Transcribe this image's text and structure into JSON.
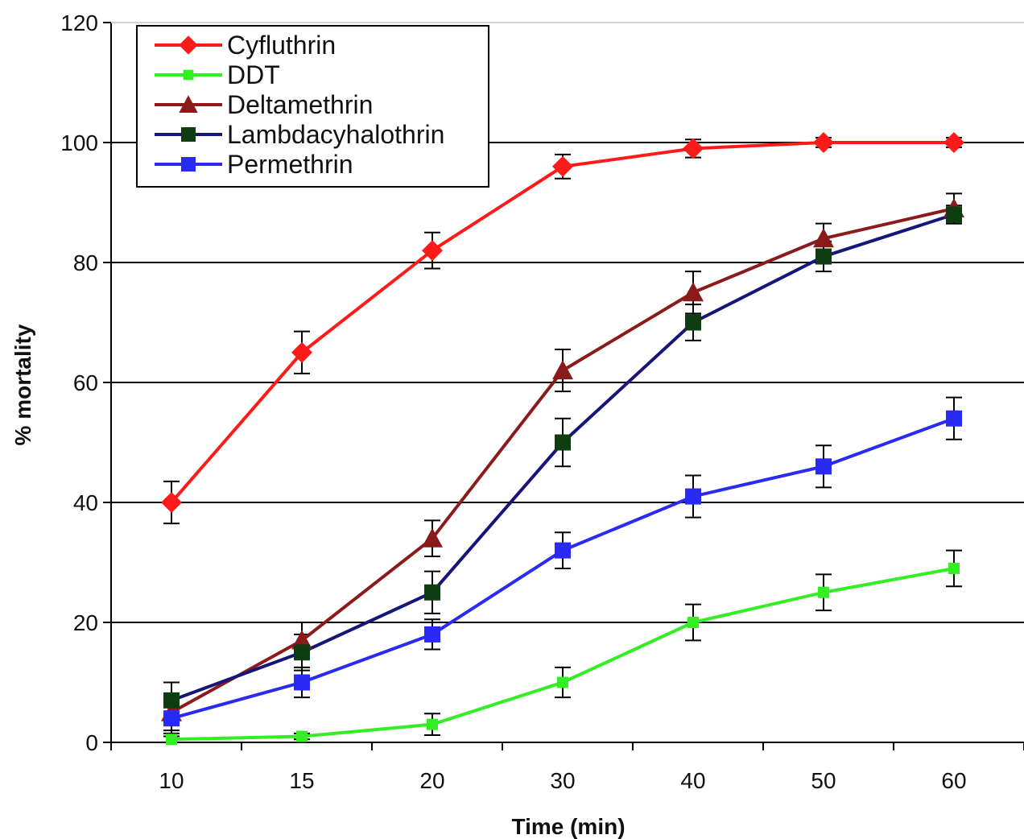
{
  "chart_data": {
    "type": "line",
    "title": "",
    "xlabel": "Time (min)",
    "ylabel": "% mortality",
    "categories": [
      "10",
      "15",
      "20",
      "30",
      "40",
      "50",
      "60"
    ],
    "ylim": [
      0,
      120
    ],
    "yticks": [
      "0",
      "20",
      "40",
      "60",
      "80",
      "100",
      "120"
    ],
    "grid": "horizontal major gridlines",
    "legend_position": "top-left",
    "error_bars": true,
    "series": [
      {
        "name": "Cyfluthrin",
        "color": "#ff1a1a",
        "marker": "diamond",
        "values": [
          40,
          65,
          82,
          96,
          99,
          100,
          100
        ],
        "errors": [
          3.5,
          3.5,
          3,
          2,
          1.5,
          0.8,
          0.8
        ]
      },
      {
        "name": "DDT",
        "color": "#33ee22",
        "marker": "small-square",
        "values": [
          0.5,
          1,
          3,
          10,
          20,
          25,
          29
        ],
        "errors": [
          0.5,
          0.5,
          1.8,
          2.5,
          3,
          3,
          3
        ]
      },
      {
        "name": "Deltamethrin",
        "color": "#8b1a1a",
        "marker": "triangle",
        "values": [
          5,
          17,
          34,
          62,
          75,
          84,
          89
        ],
        "errors": [
          3,
          3,
          3,
          3.5,
          3.5,
          2.5,
          2.5
        ]
      },
      {
        "name": "Lambdacyhalothrin",
        "color": "#15157a",
        "marker": "square-dark-green",
        "values": [
          7,
          15,
          25,
          50,
          70,
          81,
          88
        ],
        "errors": [
          3,
          3,
          3.5,
          4,
          3,
          2.5,
          1.5
        ]
      },
      {
        "name": "Permethrin",
        "color": "#2a2af5",
        "marker": "square",
        "values": [
          4,
          10,
          18,
          32,
          41,
          46,
          54
        ],
        "errors": [
          2.5,
          2.5,
          2.5,
          3,
          3.5,
          3.5,
          3.5
        ]
      }
    ]
  }
}
